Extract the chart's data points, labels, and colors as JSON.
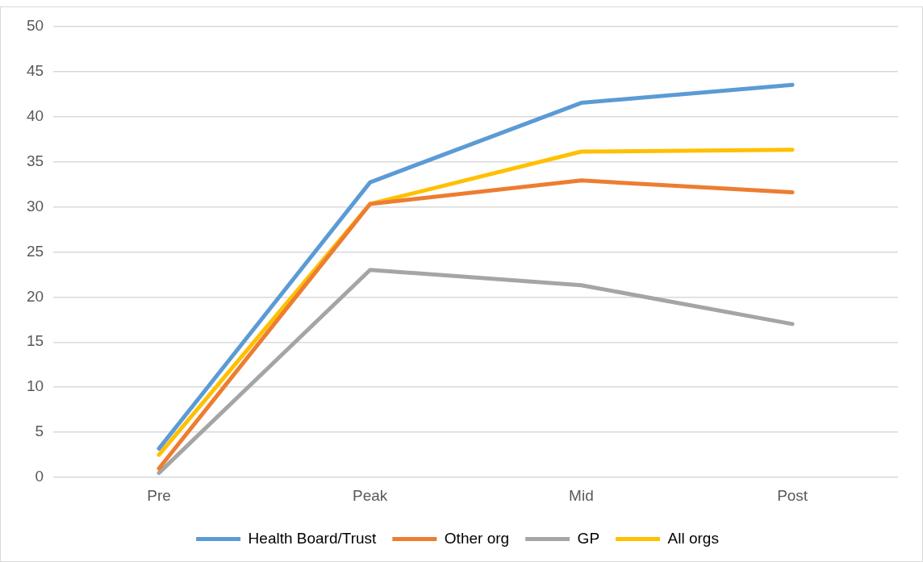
{
  "chart_data": {
    "type": "line",
    "categories": [
      "Pre",
      "Peak",
      "Mid",
      "Post"
    ],
    "series": [
      {
        "name": "Health Board/Trust",
        "color": "#5b9bd5",
        "values": [
          3.2,
          32.7,
          41.5,
          43.5
        ]
      },
      {
        "name": "Other org",
        "color": "#ed7d31",
        "values": [
          1.0,
          30.3,
          32.9,
          31.6
        ]
      },
      {
        "name": "GP",
        "color": "#a5a5a5",
        "values": [
          0.5,
          23.0,
          21.3,
          17.0
        ]
      },
      {
        "name": "All orgs",
        "color": "#ffc000",
        "values": [
          2.5,
          30.3,
          36.1,
          36.3
        ]
      }
    ],
    "ylim": [
      0,
      50
    ],
    "yticks": [
      0,
      5,
      10,
      15,
      20,
      25,
      30,
      35,
      40,
      45,
      50
    ],
    "grid": "y",
    "legend": "bottom",
    "marker": "none",
    "line_style": "solid"
  }
}
